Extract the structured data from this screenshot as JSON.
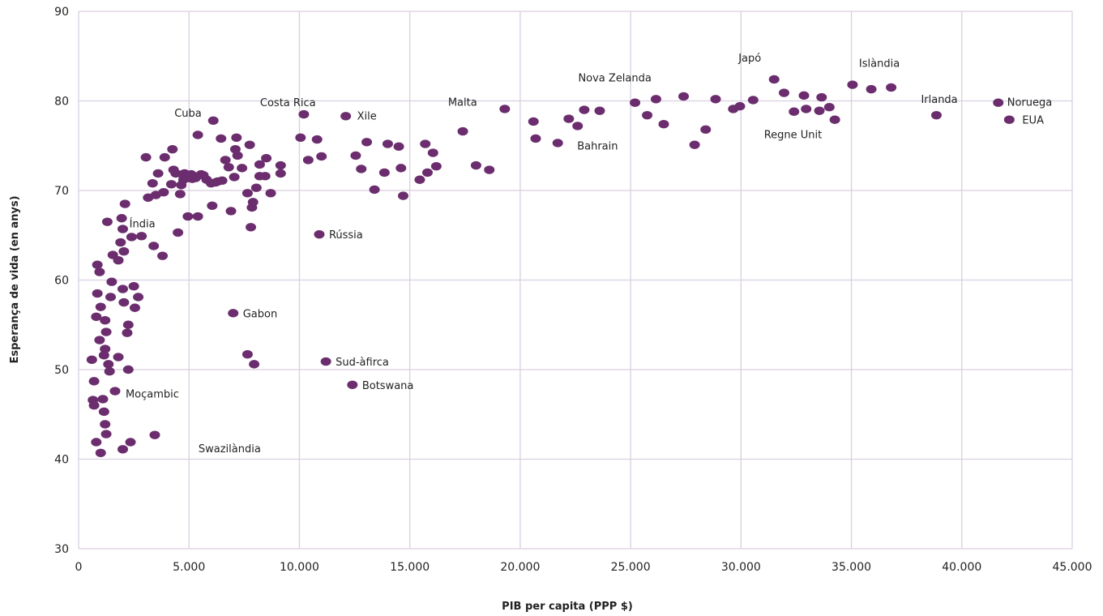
{
  "chart_data": {
    "type": "scatter",
    "title": "",
    "xlabel": "PIB per capita (PPP $)",
    "ylabel": "Esperança de vida (en anys)",
    "xlim": [
      0,
      45000
    ],
    "ylim": [
      30,
      90
    ],
    "x_ticks": [
      0,
      5000,
      10000,
      15000,
      20000,
      25000,
      30000,
      35000,
      40000,
      45000
    ],
    "x_tick_labels": [
      "0",
      "5.000",
      "10.000",
      "15.000",
      "20.000",
      "25.000",
      "30.000",
      "35.000",
      "40.000",
      "45.000"
    ],
    "y_ticks": [
      30,
      40,
      50,
      60,
      70,
      80,
      90
    ],
    "y_tick_labels": [
      "30",
      "40",
      "50",
      "60",
      "70",
      "80",
      "90"
    ],
    "grid": true,
    "legend": "none",
    "marker_color": "#6b2d6e",
    "series": [
      {
        "points": [
          [
            600,
            51.1
          ],
          [
            700,
            48.7
          ],
          [
            650,
            46.6
          ],
          [
            700,
            46.0
          ],
          [
            800,
            41.9
          ],
          [
            1000,
            40.7
          ],
          [
            800,
            55.9
          ],
          [
            850,
            58.5
          ],
          [
            850,
            61.7
          ],
          [
            950,
            60.9
          ],
          [
            1000,
            57.0
          ],
          [
            950,
            53.3
          ],
          [
            1100,
            46.7
          ],
          [
            1150,
            45.3
          ],
          [
            1200,
            43.9
          ],
          [
            1250,
            42.8
          ],
          [
            1150,
            51.6
          ],
          [
            1200,
            52.3
          ],
          [
            1250,
            54.2
          ],
          [
            1200,
            55.5
          ],
          [
            1350,
            50.6
          ],
          [
            1400,
            49.8
          ],
          [
            1450,
            58.1
          ],
          [
            1500,
            59.8
          ],
          [
            1550,
            62.8
          ],
          [
            1300,
            66.5
          ],
          [
            1650,
            47.6
          ],
          [
            1800,
            51.4
          ],
          [
            1800,
            62.2
          ],
          [
            1900,
            64.2
          ],
          [
            1950,
            66.9
          ],
          [
            2000,
            65.7
          ],
          [
            2000,
            59.0
          ],
          [
            2050,
            57.5
          ],
          [
            2050,
            63.2
          ],
          [
            2100,
            68.5
          ],
          [
            2000,
            41.1
          ],
          [
            2200,
            54.1
          ],
          [
            2250,
            55.0
          ],
          [
            2250,
            50.0
          ],
          [
            2350,
            41.9
          ],
          [
            2400,
            64.8
          ],
          [
            2500,
            59.3
          ],
          [
            2550,
            56.9
          ],
          [
            2700,
            58.1
          ],
          [
            2850,
            64.9
          ],
          [
            3050,
            73.7
          ],
          [
            3150,
            69.2
          ],
          [
            3350,
            70.8
          ],
          [
            3400,
            63.8
          ],
          [
            3450,
            42.7
          ],
          [
            3500,
            69.5
          ],
          [
            3600,
            71.9
          ],
          [
            3800,
            62.7
          ],
          [
            3850,
            69.8
          ],
          [
            3900,
            73.7
          ],
          [
            4200,
            70.7
          ],
          [
            4250,
            74.6
          ],
          [
            4300,
            72.3
          ],
          [
            4400,
            71.9
          ],
          [
            4500,
            65.3
          ],
          [
            4600,
            69.6
          ],
          [
            4650,
            70.6
          ],
          [
            4700,
            71.8
          ],
          [
            4750,
            71.2
          ],
          [
            4800,
            71.9
          ],
          [
            4950,
            67.1
          ],
          [
            5000,
            71.4
          ],
          [
            5100,
            71.8
          ],
          [
            5150,
            71.3
          ],
          [
            5300,
            71.4
          ],
          [
            5400,
            76.2
          ],
          [
            5400,
            67.1
          ],
          [
            5550,
            71.8
          ],
          [
            5650,
            71.7
          ],
          [
            5800,
            71.2
          ],
          [
            6000,
            70.8
          ],
          [
            6100,
            77.8
          ],
          [
            6050,
            68.3
          ],
          [
            6200,
            70.9
          ],
          [
            6300,
            71.0
          ],
          [
            6450,
            75.8
          ],
          [
            6500,
            71.1
          ],
          [
            6650,
            73.4
          ],
          [
            6800,
            72.6
          ],
          [
            6900,
            67.7
          ],
          [
            7000,
            56.3
          ],
          [
            7050,
            71.5
          ],
          [
            7100,
            74.6
          ],
          [
            7150,
            75.9
          ],
          [
            7200,
            73.9
          ],
          [
            7400,
            72.5
          ],
          [
            7650,
            69.7
          ],
          [
            7650,
            51.7
          ],
          [
            7750,
            75.1
          ],
          [
            7800,
            65.9
          ],
          [
            7850,
            68.1
          ],
          [
            7900,
            68.7
          ],
          [
            7950,
            50.6
          ],
          [
            8050,
            70.3
          ],
          [
            8200,
            71.6
          ],
          [
            8200,
            72.9
          ],
          [
            8450,
            71.6
          ],
          [
            8500,
            73.6
          ],
          [
            8700,
            69.7
          ],
          [
            9150,
            72.8
          ],
          [
            9150,
            71.9
          ],
          [
            10050,
            75.9
          ],
          [
            10200,
            78.5
          ],
          [
            10400,
            73.4
          ],
          [
            10800,
            75.7
          ],
          [
            10900,
            65.1
          ],
          [
            11000,
            73.8
          ],
          [
            11200,
            50.9
          ],
          [
            12100,
            78.3
          ],
          [
            12400,
            48.3
          ],
          [
            12550,
            73.9
          ],
          [
            12800,
            72.4
          ],
          [
            13050,
            75.4
          ],
          [
            13400,
            70.1
          ],
          [
            13850,
            72.0
          ],
          [
            14000,
            75.2
          ],
          [
            14500,
            74.9
          ],
          [
            14600,
            72.5
          ],
          [
            14700,
            69.4
          ],
          [
            15450,
            71.2
          ],
          [
            15700,
            75.2
          ],
          [
            15800,
            72.0
          ],
          [
            16050,
            74.2
          ],
          [
            16200,
            72.7
          ],
          [
            17400,
            76.6
          ],
          [
            18000,
            72.8
          ],
          [
            18600,
            72.3
          ],
          [
            19300,
            79.1
          ],
          [
            20600,
            77.7
          ],
          [
            20700,
            75.8
          ],
          [
            21700,
            75.3
          ],
          [
            22200,
            78.0
          ],
          [
            22600,
            77.2
          ],
          [
            22900,
            79.0
          ],
          [
            23600,
            78.9
          ],
          [
            25200,
            79.8
          ],
          [
            25750,
            78.4
          ],
          [
            26150,
            80.2
          ],
          [
            26500,
            77.4
          ],
          [
            27400,
            80.5
          ],
          [
            27900,
            75.1
          ],
          [
            28400,
            76.8
          ],
          [
            28850,
            80.2
          ],
          [
            29650,
            79.1
          ],
          [
            29950,
            79.4
          ],
          [
            30550,
            80.1
          ],
          [
            31500,
            82.4
          ],
          [
            31950,
            80.9
          ],
          [
            32400,
            78.8
          ],
          [
            32850,
            80.6
          ],
          [
            32950,
            79.1
          ],
          [
            33550,
            78.9
          ],
          [
            33650,
            80.4
          ],
          [
            34000,
            79.3
          ],
          [
            34250,
            77.9
          ],
          [
            35050,
            81.8
          ],
          [
            35900,
            81.3
          ],
          [
            36800,
            81.5
          ],
          [
            38850,
            78.4
          ],
          [
            41650,
            79.8
          ],
          [
            42150,
            77.9
          ]
        ]
      }
    ],
    "annotations": [
      {
        "text": "Cuba",
        "x": 6100,
        "y": 77.8
      },
      {
        "text": "Costa Rica",
        "x": 10200,
        "y": 78.5
      },
      {
        "text": "Xile",
        "x": 12100,
        "y": 78.3
      },
      {
        "text": "Malta",
        "x": 19300,
        "y": 79.1
      },
      {
        "text": "Nova Zelanda",
        "x": 26150,
        "y": 80.2
      },
      {
        "text": "Japó",
        "x": 31500,
        "y": 82.4
      },
      {
        "text": "Islàndia",
        "x": 35050,
        "y": 81.8
      },
      {
        "text": "Irlanda",
        "x": 38850,
        "y": 78.4
      },
      {
        "text": "Noruega",
        "x": 41650,
        "y": 79.8
      },
      {
        "text": "EUA",
        "x": 42150,
        "y": 77.9
      },
      {
        "text": "Bahrain",
        "x": 21700,
        "y": 75.3
      },
      {
        "text": "Regne Unit",
        "x": 32950,
        "y": 79.1
      },
      {
        "text": "Índia",
        "x": 2850,
        "y": 64.9
      },
      {
        "text": "Rússia",
        "x": 10900,
        "y": 65.1
      },
      {
        "text": "Gabon",
        "x": 7000,
        "y": 56.3
      },
      {
        "text": "Sud-àfirca",
        "x": 11200,
        "y": 50.9
      },
      {
        "text": "Botswana",
        "x": 12400,
        "y": 48.3
      },
      {
        "text": "Moçambic",
        "x": 1650,
        "y": 47.6
      },
      {
        "text": "Swazilàndia",
        "x": 4950,
        "y": 41.2
      }
    ]
  }
}
